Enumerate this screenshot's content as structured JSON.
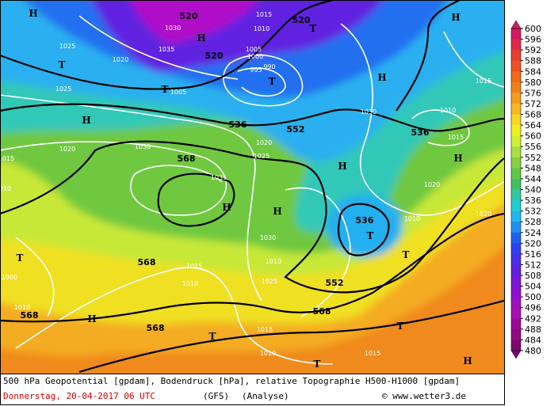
{
  "map": {
    "geopotential": [
      "520",
      "520",
      "520",
      "536",
      "552",
      "568",
      "536",
      "536",
      "552",
      "568",
      "568",
      "568",
      "568"
    ],
    "pressure": [
      "1025",
      "1030",
      "1035",
      "1020",
      "1015",
      "1010",
      "1005",
      "1000",
      "995",
      "990",
      "1025",
      "1020",
      "1015",
      "1010",
      "1030",
      "1025",
      "1020",
      "1015",
      "1010",
      "1035",
      "1030",
      "1025",
      "1015",
      "1010",
      "1015",
      "1020",
      "1010",
      "1005",
      "1000",
      "1010",
      "1015",
      "1010",
      "1020",
      "1015",
      "1030",
      "1010"
    ],
    "markers": [
      "H",
      "H",
      "H",
      "T",
      "T",
      "T",
      "H",
      "H",
      "H",
      "H",
      "H",
      "T",
      "T",
      "T",
      "T",
      "H",
      "H",
      "T",
      "T",
      "T",
      "H"
    ]
  },
  "colorbar": {
    "ticks": [
      600,
      596,
      592,
      588,
      584,
      580,
      576,
      572,
      568,
      564,
      560,
      556,
      552,
      548,
      544,
      540,
      536,
      532,
      528,
      524,
      520,
      516,
      512,
      508,
      504,
      500,
      496,
      492,
      488,
      484,
      480
    ],
    "colors": [
      "#d81860",
      "#e02848",
      "#e83c30",
      "#f05020",
      "#f06818",
      "#f08018",
      "#f49c20",
      "#f8b820",
      "#f8d820",
      "#f0f020",
      "#d0f030",
      "#a8e040",
      "#88d040",
      "#60c848",
      "#40c060",
      "#30c8a0",
      "#20d0d0",
      "#20b8f0",
      "#2090f0",
      "#2060f0",
      "#3040f0",
      "#4830e8",
      "#6020e0",
      "#7818d8",
      "#8c10d0",
      "#9c10c0",
      "#a810b0",
      "#a00898",
      "#900880",
      "#800870"
    ]
  },
  "footer": {
    "description": "500 hPa Geopotential [gpdam], Bodendruck [hPa], relative Topographie H500-H1000 [gpdam]",
    "date": "Donnerstag, 20-04-2017  06 UTC",
    "model": "(GFS)",
    "run": "(Analyse)",
    "copyright": "© www.wetter3.de"
  }
}
